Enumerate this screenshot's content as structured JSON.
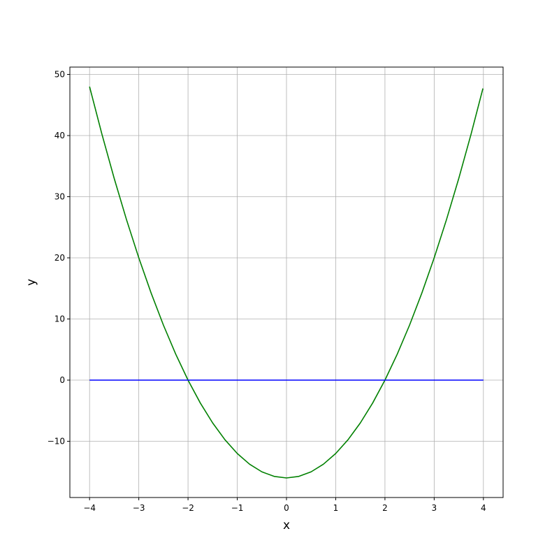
{
  "chart_data": {
    "type": "line",
    "title": "",
    "xlabel": "x",
    "ylabel": "y",
    "xlim": [
      -4.4,
      4.4
    ],
    "ylim": [
      -19.2,
      51.2
    ],
    "grid": true,
    "xticks": [
      -4,
      -3,
      -2,
      -1,
      0,
      1,
      2,
      3,
      4
    ],
    "xtick_labels": [
      "−4",
      "−3",
      "−2",
      "−1",
      "0",
      "1",
      "2",
      "3",
      "4"
    ],
    "yticks": [
      -10,
      0,
      10,
      20,
      30,
      40,
      50
    ],
    "ytick_labels": [
      "−10",
      "0",
      "10",
      "20",
      "30",
      "40",
      "50"
    ],
    "series": [
      {
        "color": "#008000",
        "x": [
          -4,
          -3.75,
          -3.5,
          -3.25,
          -3,
          -2.75,
          -2.5,
          -2.25,
          -2,
          -1.75,
          -1.5,
          -1.25,
          -1,
          -0.75,
          -0.5,
          -0.25,
          0,
          0.25,
          0.5,
          0.75,
          1,
          1.25,
          1.5,
          1.75,
          2,
          2.25,
          2.5,
          2.75,
          3,
          3.25,
          3.5,
          3.75,
          3.99
        ],
        "y": [
          48,
          40.25,
          33,
          26.25,
          20,
          14.25,
          9,
          4.25,
          0,
          -3.75,
          -7,
          -9.75,
          -12,
          -13.75,
          -15,
          -15.75,
          -16,
          -15.75,
          -15,
          -13.75,
          -12,
          -9.75,
          -7,
          -3.75,
          0,
          4.25,
          9,
          14.25,
          20,
          26.25,
          33,
          40.25,
          47.7
        ]
      },
      {
        "color": "#0000ff",
        "x": [
          -4,
          4
        ],
        "y": [
          0,
          0
        ]
      }
    ]
  }
}
